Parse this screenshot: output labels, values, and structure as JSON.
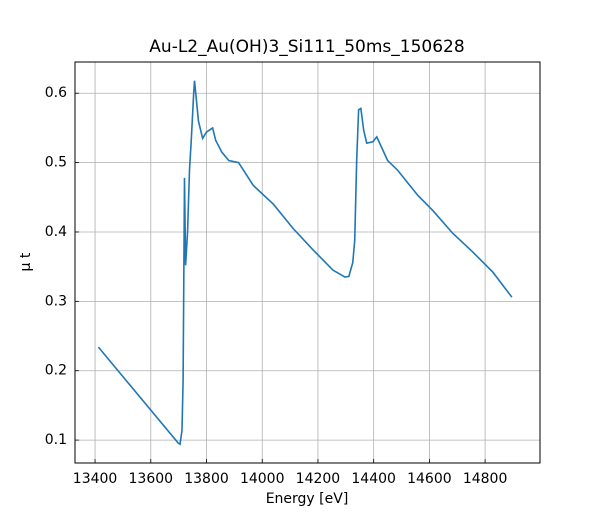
{
  "chart_data": {
    "type": "line",
    "title": "Au-L2_Au(OH)3_Si111_50ms_150628",
    "xlabel": "Energy [eV]",
    "ylabel": "μ t",
    "x": [
      13412,
      13698,
      13705,
      13712,
      13716,
      13721,
      13725,
      13732,
      13739,
      13745,
      13754,
      13757,
      13771,
      13786,
      13800,
      13822,
      13833,
      13855,
      13880,
      13915,
      13968,
      14040,
      14111,
      14183,
      14254,
      14297,
      14311,
      14325,
      14332,
      14339,
      14346,
      14354,
      14364,
      14375,
      14397,
      14411,
      14425,
      14450,
      14486,
      14558,
      14612,
      14684,
      14756,
      14828,
      14896
    ],
    "series": [
      {
        "name": "μ t",
        "color": "#1f77b4",
        "values": [
          0.234,
          0.096,
          0.094,
          0.114,
          0.186,
          0.478,
          0.352,
          0.4,
          0.49,
          0.53,
          0.6,
          0.618,
          0.56,
          0.535,
          0.544,
          0.55,
          0.532,
          0.515,
          0.503,
          0.5,
          0.467,
          0.44,
          0.405,
          0.374,
          0.345,
          0.335,
          0.336,
          0.356,
          0.388,
          0.503,
          0.576,
          0.578,
          0.547,
          0.528,
          0.53,
          0.537,
          0.525,
          0.503,
          0.489,
          0.453,
          0.431,
          0.398,
          0.371,
          0.342,
          0.306
        ]
      }
    ],
    "xlim": [
      13328,
      14997
    ],
    "ylim": [
      0.067,
      0.645
    ],
    "xticks": [
      13400,
      13600,
      13800,
      14000,
      14200,
      14400,
      14600,
      14800
    ],
    "yticks": [
      0.1,
      0.2,
      0.3,
      0.4,
      0.5,
      0.6
    ],
    "grid": true
  }
}
